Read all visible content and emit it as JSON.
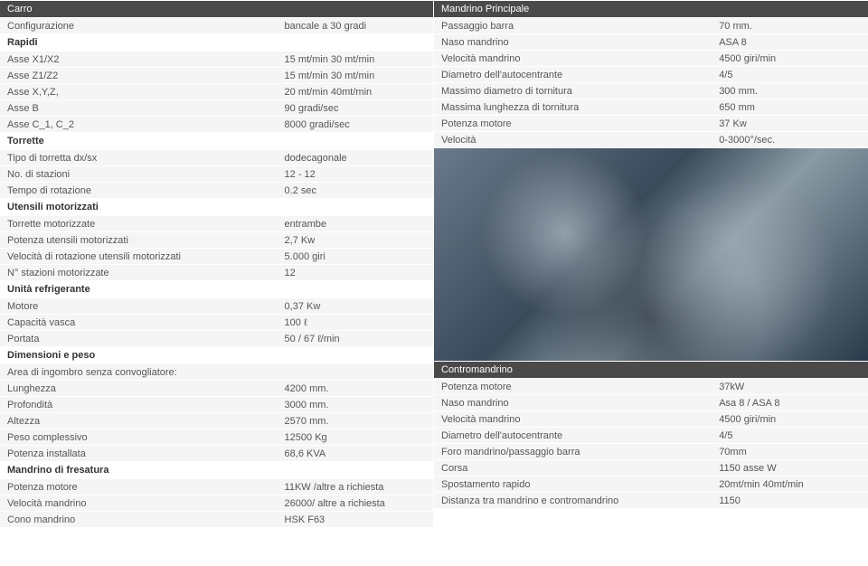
{
  "left": {
    "sections": [
      {
        "header": "Carro",
        "rows": [
          [
            "Configurazione",
            "bancale a 30 gradi"
          ]
        ]
      },
      {
        "subheader": "Rapidi",
        "rows": [
          [
            "Asse X1/X2",
            "15 mt/min 30 mt/min"
          ],
          [
            "Asse Z1/Z2",
            "15 mt/min 30 mt/min"
          ],
          [
            "Asse X,Y,Z,",
            "20 mt/min 40mt/min"
          ],
          [
            "Asse B",
            "90 gradi/sec"
          ],
          [
            "Asse C_1, C_2",
            "8000 gradi/sec"
          ]
        ]
      },
      {
        "subheader": "Torrette",
        "rows": [
          [
            "Tipo di torretta dx/sx",
            "dodecagonale"
          ],
          [
            "No. di stazioni",
            "12 - 12"
          ],
          [
            "Tempo di rotazione",
            "0.2 sec"
          ]
        ]
      },
      {
        "subheader": "Utensili motorizzati",
        "rows": [
          [
            "Torrette motorizzate",
            "entrambe"
          ],
          [
            "Potenza utensili motorizzati",
            "2,7 Kw"
          ],
          [
            "Velocità di rotazione utensili motorizzati",
            "5.000 giri"
          ],
          [
            "N° stazioni motorizzate",
            "12"
          ]
        ]
      },
      {
        "subheader": "Unità refrigerante",
        "rows": [
          [
            "Motore",
            "0,37 Kw"
          ],
          [
            "Capacità vasca",
            "100 ℓ"
          ],
          [
            "Portata",
            "50 / 67 ℓ/min"
          ]
        ]
      },
      {
        "subheader": "Dimensioni e peso",
        "rows": [
          [
            "Area di ingombro senza convogliatore:",
            ""
          ],
          [
            "Lunghezza",
            "4200 mm."
          ],
          [
            "Profondità",
            "3000 mm."
          ],
          [
            "Altezza",
            "2570 mm."
          ],
          [
            "Peso complessivo",
            "12500 Kg"
          ],
          [
            "Potenza installata",
            "68,6 KVA"
          ]
        ]
      },
      {
        "subheader": "Mandrino di fresatura",
        "rows": [
          [
            "Potenza motore",
            "11KW /altre a richiesta"
          ],
          [
            "Velocità mandrino",
            "26000/ altre a richiesta"
          ],
          [
            "Cono mandrino",
            "HSK F63"
          ]
        ]
      }
    ]
  },
  "right_top": {
    "header": "Mandrino Principale",
    "rows": [
      [
        "Passaggio barra",
        "70 mm."
      ],
      [
        "Naso mandrino",
        "ASA 8"
      ],
      [
        "Velocità mandrino",
        "4500 giri/min"
      ],
      [
        "Diametro dell'autocentrante",
        "4/5"
      ],
      [
        "Massimo diametro di tornitura",
        "300 mm."
      ],
      [
        "Massima lunghezza di tornitura",
        "650 mm"
      ],
      [
        "Potenza motore",
        "37 Kw"
      ],
      [
        "Velocità",
        "0-3000°/sec."
      ]
    ],
    "photo_height": 235
  },
  "right_bottom": {
    "header": "Contromandrino",
    "rows": [
      [
        "Potenza motore",
        "37kW"
      ],
      [
        "Naso mandrino",
        "Asa 8 / ASA 8"
      ],
      [
        "Velocità mandrino",
        "4500 giri/min"
      ],
      [
        "Diametro dell'autocentrante",
        "4/5"
      ],
      [
        "Foro mandrino/passaggio barra",
        "70mm"
      ],
      [
        "Corsa",
        "1150 asse W"
      ],
      [
        "Spostamento rapido",
        "20mt/min 40mt/min"
      ],
      [
        "Distanza tra mandrino e contromandrino",
        "1150"
      ]
    ]
  },
  "colors": {
    "header_bg": "#4a4a4a",
    "header_fg": "#ffffff",
    "row_bg": "#f5f5f5",
    "text": "#555555"
  }
}
